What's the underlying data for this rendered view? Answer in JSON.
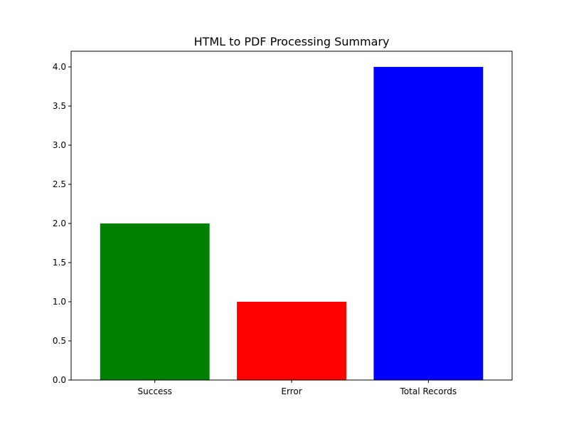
{
  "chart_data": {
    "type": "bar",
    "title": "HTML to PDF Processing Summary",
    "xlabel": "",
    "ylabel": "",
    "categories": [
      "Success",
      "Error",
      "Total Records"
    ],
    "values": [
      2,
      1,
      4
    ],
    "colors": [
      "#008000",
      "#ff0000",
      "#0000ff"
    ],
    "ylim": [
      0,
      4.2
    ],
    "yticks": [
      0.0,
      0.5,
      1.0,
      1.5,
      2.0,
      2.5,
      3.0,
      3.5,
      4.0
    ],
    "ytick_labels": [
      "0.0",
      "0.5",
      "1.0",
      "1.5",
      "2.0",
      "2.5",
      "3.0",
      "3.5",
      "4.0"
    ],
    "grid": false,
    "legend": "none"
  }
}
